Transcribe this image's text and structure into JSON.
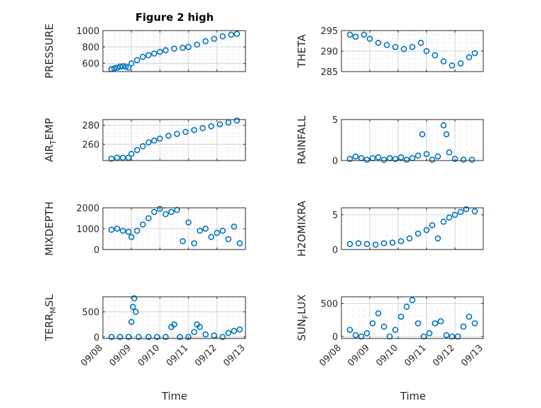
{
  "figure": {
    "title": "Figure 2 high",
    "xlabel": "Time"
  },
  "colors": {
    "marker": "#0072BD",
    "axis": "#262626",
    "grid": "#d9d9d9",
    "background": "#ffffff"
  },
  "chart_data": [
    {
      "type": "scatter",
      "panel": "pressure",
      "ylabel": "PRESSURE",
      "ylim": [
        500,
        1000
      ],
      "yticks": [
        600,
        800,
        1000
      ],
      "xlim": [
        0,
        5
      ],
      "grid": true,
      "points": [
        [
          0.3,
          530
        ],
        [
          0.4,
          540
        ],
        [
          0.5,
          550
        ],
        [
          0.6,
          560
        ],
        [
          0.7,
          565
        ],
        [
          0.8,
          560
        ],
        [
          0.9,
          550
        ],
        [
          1.0,
          600
        ],
        [
          1.2,
          640
        ],
        [
          1.4,
          680
        ],
        [
          1.6,
          700
        ],
        [
          1.8,
          720
        ],
        [
          2.0,
          740
        ],
        [
          2.2,
          760
        ],
        [
          2.5,
          780
        ],
        [
          2.8,
          790
        ],
        [
          3.0,
          800
        ],
        [
          3.3,
          830
        ],
        [
          3.6,
          870
        ],
        [
          3.9,
          900
        ],
        [
          4.2,
          930
        ],
        [
          4.5,
          950
        ],
        [
          4.7,
          960
        ]
      ]
    },
    {
      "type": "scatter",
      "panel": "theta",
      "ylabel": "THETA",
      "ylim": [
        285,
        295
      ],
      "yticks": [
        285,
        290,
        295
      ],
      "xlim": [
        0,
        5
      ],
      "grid": true,
      "points": [
        [
          0.3,
          294
        ],
        [
          0.5,
          293.5
        ],
        [
          0.8,
          294
        ],
        [
          1.0,
          293
        ],
        [
          1.3,
          292
        ],
        [
          1.6,
          291.5
        ],
        [
          1.9,
          291
        ],
        [
          2.2,
          290.5
        ],
        [
          2.5,
          291
        ],
        [
          2.8,
          292
        ],
        [
          3.0,
          290
        ],
        [
          3.3,
          289
        ],
        [
          3.6,
          287.5
        ],
        [
          3.9,
          286.5
        ],
        [
          4.2,
          287
        ],
        [
          4.5,
          288.5
        ],
        [
          4.7,
          289.5
        ]
      ]
    },
    {
      "type": "scatter",
      "panel": "airtemp",
      "ylabel": "AIR_TEMP",
      "ylim": [
        243,
        286
      ],
      "yticks": [
        260,
        280
      ],
      "xlim": [
        0,
        5
      ],
      "grid": true,
      "points": [
        [
          0.3,
          245
        ],
        [
          0.5,
          246
        ],
        [
          0.7,
          246
        ],
        [
          0.9,
          246
        ],
        [
          1.0,
          250
        ],
        [
          1.2,
          254
        ],
        [
          1.4,
          258
        ],
        [
          1.6,
          262
        ],
        [
          1.8,
          264
        ],
        [
          2.0,
          266
        ],
        [
          2.3,
          269
        ],
        [
          2.6,
          271
        ],
        [
          2.9,
          273
        ],
        [
          3.2,
          275
        ],
        [
          3.5,
          277
        ],
        [
          3.8,
          279
        ],
        [
          4.1,
          281
        ],
        [
          4.4,
          283
        ],
        [
          4.7,
          285
        ]
      ]
    },
    {
      "type": "scatter",
      "panel": "rainfall",
      "ylabel": "RAINFALL",
      "ylim": [
        0,
        5
      ],
      "yticks": [
        0,
        5
      ],
      "xlim": [
        0,
        5
      ],
      "grid": true,
      "points": [
        [
          0.3,
          0.2
        ],
        [
          0.5,
          0.5
        ],
        [
          0.7,
          0.3
        ],
        [
          0.9,
          0.1
        ],
        [
          1.1,
          0.3
        ],
        [
          1.3,
          0.4
        ],
        [
          1.5,
          0.1
        ],
        [
          1.7,
          0.3
        ],
        [
          1.9,
          0.2
        ],
        [
          2.1,
          0.4
        ],
        [
          2.3,
          0.1
        ],
        [
          2.5,
          0.3
        ],
        [
          2.7,
          0.6
        ],
        [
          2.85,
          3.2
        ],
        [
          3.0,
          0.8
        ],
        [
          3.2,
          0.1
        ],
        [
          3.4,
          0.5
        ],
        [
          3.6,
          4.3
        ],
        [
          3.7,
          3.2
        ],
        [
          3.8,
          1.0
        ],
        [
          4.0,
          0.2
        ],
        [
          4.3,
          0.1
        ],
        [
          4.6,
          0.1
        ]
      ]
    },
    {
      "type": "scatter",
      "panel": "mixdepth",
      "ylabel": "MIXDEPTH",
      "ylim": [
        0,
        2000
      ],
      "yticks": [
        0,
        1000,
        2000
      ],
      "xlim": [
        0,
        5
      ],
      "grid": true,
      "points": [
        [
          0.3,
          950
        ],
        [
          0.5,
          1000
        ],
        [
          0.7,
          900
        ],
        [
          0.9,
          850
        ],
        [
          1.0,
          600
        ],
        [
          1.2,
          900
        ],
        [
          1.4,
          1200
        ],
        [
          1.6,
          1500
        ],
        [
          1.8,
          1800
        ],
        [
          2.0,
          1950
        ],
        [
          2.2,
          1700
        ],
        [
          2.4,
          1800
        ],
        [
          2.6,
          1900
        ],
        [
          2.8,
          400
        ],
        [
          3.0,
          1300
        ],
        [
          3.2,
          300
        ],
        [
          3.4,
          900
        ],
        [
          3.6,
          1000
        ],
        [
          3.8,
          600
        ],
        [
          4.0,
          800
        ],
        [
          4.2,
          900
        ],
        [
          4.4,
          500
        ],
        [
          4.6,
          1100
        ],
        [
          4.8,
          300
        ]
      ]
    },
    {
      "type": "scatter",
      "panel": "h2omixra",
      "ylabel": "H2OMIXRA",
      "ylim": [
        0,
        6
      ],
      "yticks": [
        0,
        5
      ],
      "xlim": [
        0,
        5
      ],
      "grid": true,
      "points": [
        [
          0.3,
          0.8
        ],
        [
          0.6,
          0.9
        ],
        [
          0.9,
          0.8
        ],
        [
          1.2,
          0.7
        ],
        [
          1.5,
          0.9
        ],
        [
          1.8,
          1.0
        ],
        [
          2.1,
          1.2
        ],
        [
          2.4,
          1.6
        ],
        [
          2.7,
          2.3
        ],
        [
          3.0,
          2.8
        ],
        [
          3.2,
          3.5
        ],
        [
          3.4,
          1.6
        ],
        [
          3.6,
          4.0
        ],
        [
          3.8,
          4.6
        ],
        [
          4.0,
          5.0
        ],
        [
          4.2,
          5.4
        ],
        [
          4.4,
          5.8
        ],
        [
          4.7,
          5.5
        ]
      ]
    },
    {
      "type": "scatter",
      "panel": "terr_msl",
      "ylabel": "TERR_MSL",
      "ylim": [
        -30,
        800
      ],
      "yticks": [
        0,
        500
      ],
      "xlim": [
        0,
        5
      ],
      "grid": true,
      "points": [
        [
          0.3,
          0
        ],
        [
          0.6,
          0
        ],
        [
          0.9,
          0
        ],
        [
          1.0,
          300
        ],
        [
          1.05,
          600
        ],
        [
          1.1,
          770
        ],
        [
          1.15,
          500
        ],
        [
          1.25,
          0
        ],
        [
          1.6,
          0
        ],
        [
          1.9,
          0
        ],
        [
          2.2,
          0
        ],
        [
          2.4,
          200
        ],
        [
          2.5,
          250
        ],
        [
          2.7,
          0
        ],
        [
          3.0,
          0
        ],
        [
          3.2,
          100
        ],
        [
          3.3,
          250
        ],
        [
          3.4,
          200
        ],
        [
          3.6,
          50
        ],
        [
          3.9,
          30
        ],
        [
          4.2,
          0
        ],
        [
          4.4,
          80
        ],
        [
          4.6,
          120
        ],
        [
          4.8,
          150
        ]
      ]
    },
    {
      "type": "scatter",
      "panel": "sun_flux",
      "ylabel": "SUN_FLUX",
      "ylim": [
        -30,
        600
      ],
      "yticks": [
        0,
        500
      ],
      "xlim": [
        0,
        5
      ],
      "grid": true,
      "points": [
        [
          0.3,
          100
        ],
        [
          0.5,
          20
        ],
        [
          0.7,
          0
        ],
        [
          0.9,
          50
        ],
        [
          1.1,
          200
        ],
        [
          1.3,
          350
        ],
        [
          1.5,
          150
        ],
        [
          1.7,
          0
        ],
        [
          1.9,
          100
        ],
        [
          2.1,
          300
        ],
        [
          2.3,
          450
        ],
        [
          2.5,
          550
        ],
        [
          2.7,
          200
        ],
        [
          2.9,
          0
        ],
        [
          3.1,
          50
        ],
        [
          3.3,
          200
        ],
        [
          3.5,
          230
        ],
        [
          3.7,
          20
        ],
        [
          3.9,
          0
        ],
        [
          4.1,
          0
        ],
        [
          4.3,
          150
        ],
        [
          4.5,
          300
        ],
        [
          4.7,
          200
        ]
      ]
    }
  ],
  "xaxis": {
    "ticks": [
      0,
      1,
      2,
      3,
      4,
      5
    ],
    "tick_labels": [
      "09/08",
      "09/09",
      "09/10",
      "09/11",
      "09/12",
      "09/13"
    ]
  }
}
